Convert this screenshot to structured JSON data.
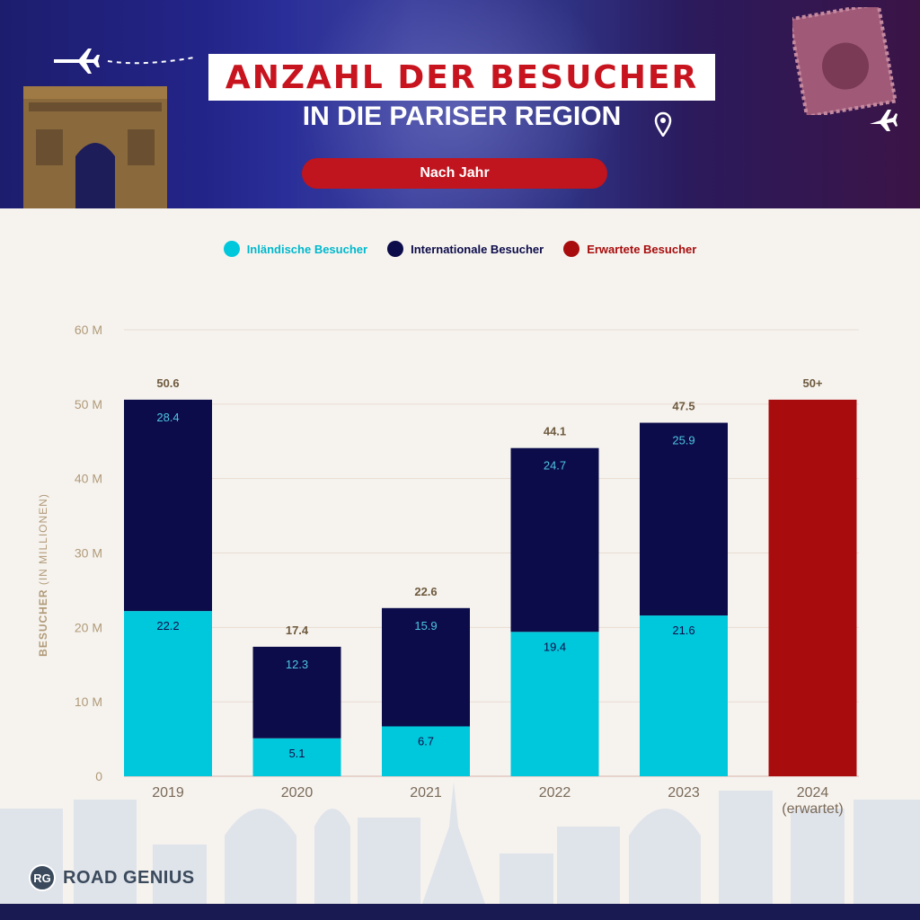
{
  "header": {
    "title": "ANZAHL DER BESUCHER",
    "subtitle": "IN DIE PARISER REGION",
    "pill": "Nach Jahr"
  },
  "colors": {
    "domestic": "#00c8dc",
    "international": "#0c0c4a",
    "expected": "#a80c0c",
    "axis_text": "#b09a78",
    "total_text": "#6e5a3e"
  },
  "legend": {
    "domestic": "Inländische Besucher",
    "international": "Internationale Besucher",
    "expected": "Erwartete Besucher"
  },
  "logo": {
    "badge": "RG",
    "text": "ROAD GENIUS"
  },
  "chart_data": {
    "type": "bar",
    "stacked": true,
    "title": "ANZAHL DER BESUCHER IN DIE PARISER REGION",
    "subtitle": "Nach Jahr",
    "ylabel": "BESUCHER",
    "ylabel_unit": "(IN MILLIONEN)",
    "ylim": [
      0,
      60
    ],
    "yticks": [
      "0",
      "10 M",
      "20 M",
      "30 M",
      "40 M",
      "50 M",
      "60 M"
    ],
    "categories": [
      "2019",
      "2020",
      "2021",
      "2022",
      "2023",
      "2024\n(erwartet)"
    ],
    "category_lines": [
      [
        "2019"
      ],
      [
        "2020"
      ],
      [
        "2021"
      ],
      [
        "2022"
      ],
      [
        "2023"
      ],
      [
        "2024",
        "(erwartet)"
      ]
    ],
    "series": [
      {
        "name": "Inländische Besucher",
        "values": [
          22.2,
          5.1,
          6.7,
          19.4,
          21.6,
          null
        ],
        "labels": [
          "22.2",
          "5.1",
          "6.7",
          "19.4",
          "21.6",
          ""
        ]
      },
      {
        "name": "Internationale Besucher",
        "values": [
          28.4,
          12.3,
          15.9,
          24.7,
          25.9,
          null
        ],
        "labels": [
          "28.4",
          "12.3",
          "15.9",
          "24.7",
          "25.9",
          ""
        ]
      },
      {
        "name": "Erwartete Besucher",
        "values": [
          null,
          null,
          null,
          null,
          null,
          50.6
        ],
        "labels": [
          "",
          "",
          "",
          "",
          "",
          ""
        ]
      }
    ],
    "totals": [
      "50.6",
      "17.4",
      "22.6",
      "44.1",
      "47.5",
      "50+"
    ],
    "legend_position": "top-center",
    "grid": true
  }
}
